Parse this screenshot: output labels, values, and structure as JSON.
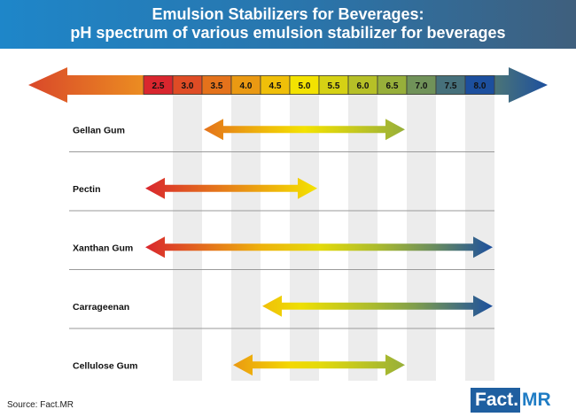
{
  "header": {
    "title_line1": "Emulsion Stabilizers for Beverages:",
    "title_line2": "pH spectrum of various emulsion stabilizer for beverages"
  },
  "chart_data": {
    "type": "range",
    "ph_scale": [
      "2.5",
      "3.0",
      "3.5",
      "4.0",
      "4.5",
      "5.0",
      "5.5",
      "6.0",
      "6.5",
      "7.0",
      "7.5",
      "8.0"
    ],
    "rows": [
      {
        "label": "Gellan Gum",
        "start": 3.5,
        "end": 6.5
      },
      {
        "label": "Pectin",
        "start": 2.5,
        "end": 5.0
      },
      {
        "label": "Xanthan Gum",
        "start": 2.5,
        "end": 8.0
      },
      {
        "label": "Carrageenan",
        "start": 4.5,
        "end": 8.0
      },
      {
        "label": "Cellulose Gum",
        "start": 4.0,
        "end": 6.5
      }
    ],
    "colors": {
      "acid": "#d9262e",
      "mid": "#f5e300",
      "green": "#8fab3f",
      "base": "#1c4f9e"
    }
  },
  "footer": {
    "source": "Source: Fact.MR",
    "logo_fact": "Fact",
    "logo_dot": ".",
    "logo_mr": "MR"
  }
}
